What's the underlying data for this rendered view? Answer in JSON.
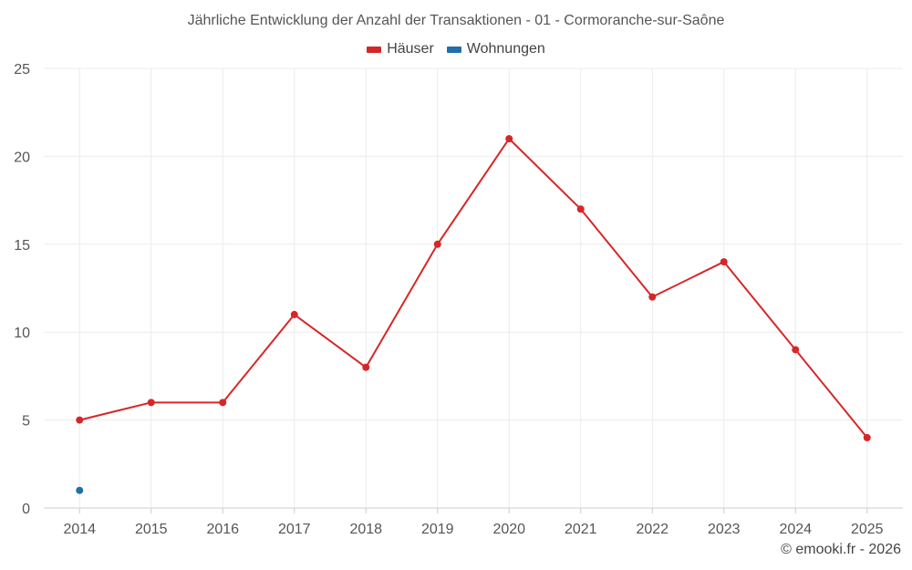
{
  "chart_data": {
    "type": "line",
    "title": "Jährliche Entwicklung der Anzahl der Transaktionen - 01 - Cormoranche-sur-Saône",
    "categories": [
      "2014",
      "2015",
      "2016",
      "2017",
      "2018",
      "2019",
      "2020",
      "2021",
      "2022",
      "2023",
      "2024",
      "2025"
    ],
    "series": [
      {
        "name": "Häuser",
        "color": "#d62728",
        "values": [
          5,
          6,
          6,
          11,
          8,
          15,
          21,
          17,
          12,
          14,
          9,
          4
        ]
      },
      {
        "name": "Wohnungen",
        "color": "#1f6fad",
        "values": [
          1,
          null,
          null,
          null,
          null,
          null,
          null,
          null,
          null,
          null,
          null,
          null
        ]
      }
    ],
    "ylim": [
      0,
      25
    ],
    "yticks": [
      0,
      5,
      10,
      15,
      20,
      25
    ],
    "xlabel": "",
    "ylabel": "",
    "grid": true,
    "legend_position": "top-center"
  },
  "credit": "© emooki.fr - 2026"
}
